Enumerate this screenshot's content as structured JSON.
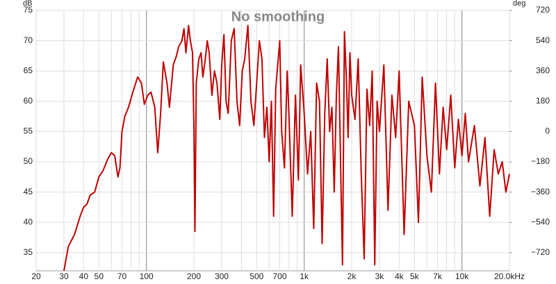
{
  "chart_data": {
    "type": "line",
    "title": "No smoothing",
    "ylabel": "dB",
    "y2label": "deg",
    "log_x": true,
    "grid": true,
    "xlim": [
      20,
      20000
    ],
    "xticks": [
      20,
      30,
      40,
      50,
      70,
      100,
      200,
      300,
      500,
      700,
      {
        "value": 1000,
        "label": "1k"
      },
      {
        "value": 2000,
        "label": "2k"
      },
      {
        "value": 3000,
        "label": "3k"
      },
      {
        "value": 4000,
        "label": "4k"
      },
      {
        "value": 5000,
        "label": "5k"
      },
      {
        "value": 7000,
        "label": "7k"
      },
      {
        "value": 10000,
        "label": "10k"
      },
      {
        "value": 20000,
        "label": "20.0kHz"
      }
    ],
    "xminor": [
      60,
      80,
      90,
      400,
      600,
      800,
      900,
      6000,
      8000,
      9000
    ],
    "xmajor": [
      100,
      1000,
      10000
    ],
    "ylim": [
      32,
      75
    ],
    "yticks": [
      35,
      40,
      45,
      50,
      55,
      60,
      65,
      70,
      75
    ],
    "y2lim": [
      -828,
      720
    ],
    "y2ticks": [
      {
        "value": -720,
        "label": "−720"
      },
      {
        "value": -540,
        "label": "−540"
      },
      {
        "value": -360,
        "label": "−360"
      },
      {
        "value": -180,
        "label": "−180"
      },
      0,
      180,
      360,
      540,
      720
    ],
    "color": "#c00000",
    "x": [
      30,
      32,
      35,
      38,
      40,
      42,
      44,
      47,
      50,
      53,
      57,
      60,
      63,
      66,
      68,
      70,
      73,
      77,
      82,
      88,
      93,
      97,
      102,
      107,
      113,
      118,
      123,
      128,
      135,
      140,
      148,
      155,
      160,
      168,
      173,
      178,
      185,
      190,
      196,
      200,
      203,
      207,
      215,
      222,
      228,
      235,
      243,
      250,
      260,
      270,
      280,
      292,
      300,
      310,
      320,
      330,
      345,
      360,
      375,
      390,
      405,
      420,
      440,
      460,
      480,
      500,
      520,
      540,
      560,
      580,
      600,
      620,
      640,
      660,
      700,
      720,
      750,
      780,
      800,
      840,
      880,
      920,
      950,
      1000,
      1050,
      1100,
      1150,
      1200,
      1250,
      1300,
      1350,
      1400,
      1450,
      1500,
      1550,
      1600,
      1650,
      1700,
      1750,
      1800,
      1850,
      1900,
      1950,
      2000,
      2100,
      2200,
      2300,
      2400,
      2500,
      2600,
      2700,
      2800,
      2900,
      3000,
      3200,
      3400,
      3600,
      3800,
      4000,
      4300,
      4600,
      5000,
      5300,
      5600,
      6000,
      6400,
      6800,
      7200,
      7600,
      8000,
      8500,
      9000,
      9500,
      10000,
      10500,
      11000,
      12000,
      13000,
      14000,
      15000,
      16000,
      17000,
      18000,
      19000,
      20000
    ],
    "values": [
      32,
      36,
      38,
      41,
      42.5,
      43,
      44.5,
      45,
      47.5,
      48.5,
      50.5,
      51.5,
      51,
      47.5,
      49,
      55,
      57.5,
      59,
      61.5,
      64,
      63,
      59.5,
      61,
      61.5,
      59,
      51.5,
      58,
      66.5,
      63,
      59,
      66,
      67.5,
      69,
      70,
      72,
      68,
      72.5,
      70,
      68,
      56,
      38.5,
      63,
      67,
      68,
      64,
      66.5,
      70,
      68,
      61,
      65,
      63,
      57,
      66,
      71,
      60,
      58,
      70,
      72,
      60,
      56,
      65,
      67,
      72.5,
      60,
      56,
      63,
      70,
      67,
      54,
      59,
      50,
      60,
      41,
      62,
      70,
      55,
      49,
      65,
      58,
      41,
      61,
      47,
      66,
      58,
      48,
      55,
      39,
      63,
      60,
      36.5,
      58,
      67,
      55,
      59,
      45,
      61,
      69,
      50,
      33,
      71.5,
      64,
      54,
      68,
      61,
      57,
      67,
      48,
      34,
      62,
      56,
      65,
      33,
      60,
      55,
      66,
      42,
      61,
      54,
      65,
      38,
      60,
      56,
      40,
      64,
      51,
      45,
      63,
      48,
      59,
      52,
      61,
      49,
      57,
      51,
      58,
      50,
      56,
      46,
      54,
      41,
      52,
      48,
      50,
      45,
      48
    ]
  }
}
